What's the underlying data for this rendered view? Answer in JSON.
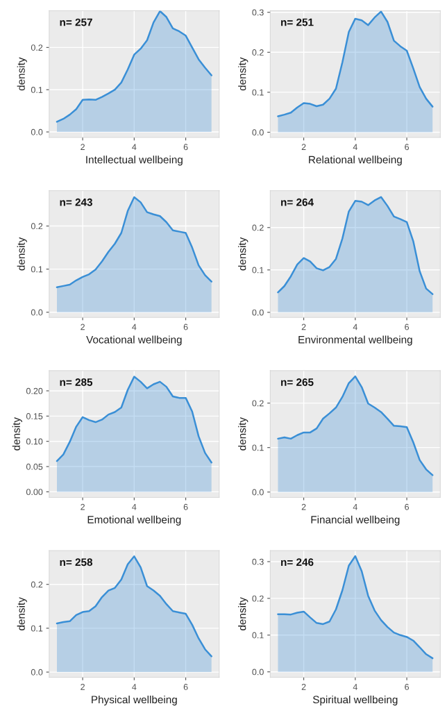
{
  "chart_data": [
    {
      "type": "area",
      "xlabel": "Intellectual wellbeing",
      "ylabel": "density",
      "annotations": [
        "n= 257"
      ],
      "color": "#3a8fd6",
      "grid": true,
      "xlim": [
        0.7,
        7.3
      ],
      "xticks": [
        2,
        4,
        6
      ],
      "ylim": [
        -0.013,
        0.287
      ],
      "yticks": [
        {
          "value": 0.0,
          "label": "0.0"
        },
        {
          "value": 0.1,
          "label": "0.1"
        },
        {
          "value": 0.2,
          "label": "0.2"
        }
      ],
      "x": [
        1,
        1.25,
        1.5,
        1.75,
        2,
        2.25,
        2.5,
        2.75,
        3,
        3.25,
        3.5,
        3.75,
        4,
        4.25,
        4.5,
        4.75,
        5,
        5.25,
        5.5,
        5.75,
        6,
        6.25,
        6.5,
        6.75,
        7
      ],
      "values": [
        0.024,
        0.031,
        0.041,
        0.054,
        0.076,
        0.077,
        0.076,
        0.083,
        0.091,
        0.1,
        0.117,
        0.148,
        0.183,
        0.197,
        0.217,
        0.259,
        0.286,
        0.272,
        0.245,
        0.238,
        0.228,
        0.2,
        0.172,
        0.152,
        0.134
      ]
    },
    {
      "type": "area",
      "xlabel": "Relational wellbeing",
      "ylabel": "density",
      "annotations": [
        "n= 251"
      ],
      "color": "#3a8fd6",
      "grid": true,
      "xlim": [
        0.7,
        7.3
      ],
      "xticks": [
        2,
        4,
        6
      ],
      "ylim": [
        -0.013,
        0.304
      ],
      "yticks": [
        {
          "value": 0.0,
          "label": "0.0"
        },
        {
          "value": 0.1,
          "label": "0.1"
        },
        {
          "value": 0.2,
          "label": "0.2"
        },
        {
          "value": 0.3,
          "label": "0.3"
        }
      ],
      "x": [
        1,
        1.25,
        1.5,
        1.75,
        2,
        2.25,
        2.5,
        2.75,
        3,
        3.25,
        3.5,
        3.75,
        4,
        4.25,
        4.5,
        4.75,
        5,
        5.25,
        5.5,
        5.75,
        6,
        6.25,
        6.5,
        6.75,
        7
      ],
      "values": [
        0.04,
        0.044,
        0.049,
        0.062,
        0.073,
        0.071,
        0.065,
        0.069,
        0.084,
        0.109,
        0.175,
        0.251,
        0.284,
        0.28,
        0.268,
        0.287,
        0.302,
        0.276,
        0.229,
        0.215,
        0.204,
        0.16,
        0.113,
        0.084,
        0.064
      ]
    },
    {
      "type": "area",
      "xlabel": "Vocational wellbeing",
      "ylabel": "density",
      "annotations": [
        "n= 243"
      ],
      "color": "#3a8fd6",
      "grid": true,
      "xlim": [
        0.7,
        7.3
      ],
      "xticks": [
        2,
        4,
        6
      ],
      "ylim": [
        -0.012,
        0.282
      ],
      "yticks": [
        {
          "value": 0.0,
          "label": "0.0"
        },
        {
          "value": 0.1,
          "label": "0.1"
        },
        {
          "value": 0.2,
          "label": "0.2"
        }
      ],
      "x": [
        1,
        1.25,
        1.5,
        1.75,
        2,
        2.25,
        2.5,
        2.75,
        3,
        3.25,
        3.5,
        3.75,
        4,
        4.25,
        4.5,
        4.75,
        5,
        5.25,
        5.5,
        5.75,
        6,
        6.25,
        6.5,
        6.75,
        7
      ],
      "values": [
        0.058,
        0.061,
        0.064,
        0.074,
        0.082,
        0.088,
        0.099,
        0.118,
        0.14,
        0.159,
        0.184,
        0.235,
        0.267,
        0.255,
        0.232,
        0.227,
        0.223,
        0.209,
        0.19,
        0.187,
        0.184,
        0.15,
        0.109,
        0.086,
        0.071
      ]
    },
    {
      "type": "area",
      "xlabel": "Environmental wellbeing",
      "ylabel": "density",
      "annotations": [
        "n= 264"
      ],
      "color": "#3a8fd6",
      "grid": true,
      "xlim": [
        0.7,
        7.3
      ],
      "xticks": [
        2,
        4,
        6
      ],
      "ylim": [
        -0.012,
        0.287
      ],
      "yticks": [
        {
          "value": 0.0,
          "label": "0.0"
        },
        {
          "value": 0.1,
          "label": "0.1"
        },
        {
          "value": 0.2,
          "label": "0.2"
        }
      ],
      "x": [
        1,
        1.25,
        1.5,
        1.75,
        2,
        2.25,
        2.5,
        2.75,
        3,
        3.25,
        3.5,
        3.75,
        4,
        4.25,
        4.5,
        4.75,
        5,
        5.25,
        5.5,
        5.75,
        6,
        6.25,
        6.5,
        6.75,
        7
      ],
      "values": [
        0.047,
        0.062,
        0.085,
        0.113,
        0.128,
        0.12,
        0.104,
        0.099,
        0.107,
        0.126,
        0.174,
        0.238,
        0.263,
        0.261,
        0.253,
        0.264,
        0.272,
        0.251,
        0.226,
        0.22,
        0.213,
        0.168,
        0.097,
        0.056,
        0.043
      ]
    },
    {
      "type": "area",
      "xlabel": "Emotional wellbeing",
      "ylabel": "density",
      "annotations": [
        "n= 285"
      ],
      "color": "#3a8fd6",
      "grid": true,
      "xlim": [
        0.7,
        7.3
      ],
      "xticks": [
        2,
        4,
        6
      ],
      "ylim": [
        -0.011,
        0.24
      ],
      "yticks": [
        {
          "value": 0.0,
          "label": "0.00"
        },
        {
          "value": 0.05,
          "label": "0.05"
        },
        {
          "value": 0.1,
          "label": "0.10"
        },
        {
          "value": 0.15,
          "label": "0.15"
        },
        {
          "value": 0.2,
          "label": "0.20"
        }
      ],
      "x": [
        1,
        1.25,
        1.5,
        1.75,
        2,
        2.25,
        2.5,
        2.75,
        3,
        3.25,
        3.5,
        3.75,
        4,
        4.25,
        4.5,
        4.75,
        5,
        5.25,
        5.5,
        5.75,
        6,
        6.25,
        6.5,
        6.75,
        7
      ],
      "values": [
        0.061,
        0.074,
        0.099,
        0.129,
        0.148,
        0.142,
        0.138,
        0.143,
        0.153,
        0.158,
        0.167,
        0.202,
        0.228,
        0.218,
        0.205,
        0.213,
        0.218,
        0.208,
        0.189,
        0.186,
        0.186,
        0.159,
        0.11,
        0.077,
        0.058
      ]
    },
    {
      "type": "area",
      "xlabel": "Financial wellbeing",
      "ylabel": "density",
      "annotations": [
        "n= 265"
      ],
      "color": "#3a8fd6",
      "grid": true,
      "xlim": [
        0.7,
        7.3
      ],
      "xticks": [
        2,
        4,
        6
      ],
      "ylim": [
        -0.012,
        0.273
      ],
      "yticks": [
        {
          "value": 0.0,
          "label": "0.0"
        },
        {
          "value": 0.1,
          "label": "0.1"
        },
        {
          "value": 0.2,
          "label": "0.2"
        }
      ],
      "x": [
        1,
        1.25,
        1.5,
        1.75,
        2,
        2.25,
        2.5,
        2.75,
        3,
        3.25,
        3.5,
        3.75,
        4,
        4.25,
        4.5,
        4.75,
        5,
        5.25,
        5.5,
        5.75,
        6,
        6.25,
        6.5,
        6.75,
        7
      ],
      "values": [
        0.12,
        0.123,
        0.12,
        0.128,
        0.134,
        0.134,
        0.143,
        0.165,
        0.177,
        0.19,
        0.214,
        0.245,
        0.26,
        0.236,
        0.199,
        0.19,
        0.18,
        0.165,
        0.149,
        0.148,
        0.146,
        0.112,
        0.072,
        0.051,
        0.038
      ]
    },
    {
      "type": "area",
      "xlabel": "Physical wellbeing",
      "ylabel": "density",
      "annotations": [
        "n= 258"
      ],
      "color": "#3a8fd6",
      "grid": true,
      "xlim": [
        0.7,
        7.3
      ],
      "xticks": [
        2,
        4,
        6
      ],
      "ylim": [
        -0.012,
        0.277
      ],
      "yticks": [
        {
          "value": 0.0,
          "label": "0.0"
        },
        {
          "value": 0.1,
          "label": "0.1"
        },
        {
          "value": 0.2,
          "label": "0.2"
        }
      ],
      "x": [
        1,
        1.25,
        1.5,
        1.75,
        2,
        2.25,
        2.5,
        2.75,
        3,
        3.25,
        3.5,
        3.75,
        4,
        4.25,
        4.5,
        4.75,
        5,
        5.25,
        5.5,
        5.75,
        6,
        6.25,
        6.5,
        6.75,
        7
      ],
      "values": [
        0.111,
        0.114,
        0.116,
        0.13,
        0.137,
        0.139,
        0.15,
        0.171,
        0.186,
        0.192,
        0.211,
        0.246,
        0.264,
        0.239,
        0.196,
        0.186,
        0.174,
        0.155,
        0.139,
        0.136,
        0.133,
        0.108,
        0.077,
        0.052,
        0.036
      ]
    },
    {
      "type": "area",
      "xlabel": "Spiritual wellbeing",
      "ylabel": "density",
      "annotations": [
        "n= 246"
      ],
      "color": "#3a8fd6",
      "grid": true,
      "xlim": [
        0.7,
        7.3
      ],
      "xticks": [
        2,
        4,
        6
      ],
      "ylim": [
        -0.015,
        0.33
      ],
      "yticks": [
        {
          "value": 0.0,
          "label": "0.0"
        },
        {
          "value": 0.1,
          "label": "0.1"
        },
        {
          "value": 0.2,
          "label": "0.2"
        },
        {
          "value": 0.3,
          "label": "0.3"
        }
      ],
      "x": [
        1,
        1.25,
        1.5,
        1.75,
        2,
        2.25,
        2.5,
        2.75,
        3,
        3.25,
        3.5,
        3.75,
        4,
        4.25,
        4.5,
        4.75,
        5,
        5.25,
        5.5,
        5.75,
        6,
        6.25,
        6.5,
        6.75,
        7
      ],
      "values": [
        0.157,
        0.157,
        0.156,
        0.161,
        0.164,
        0.148,
        0.133,
        0.13,
        0.137,
        0.17,
        0.222,
        0.289,
        0.315,
        0.274,
        0.207,
        0.167,
        0.141,
        0.122,
        0.107,
        0.1,
        0.095,
        0.085,
        0.067,
        0.048,
        0.037
      ]
    }
  ]
}
